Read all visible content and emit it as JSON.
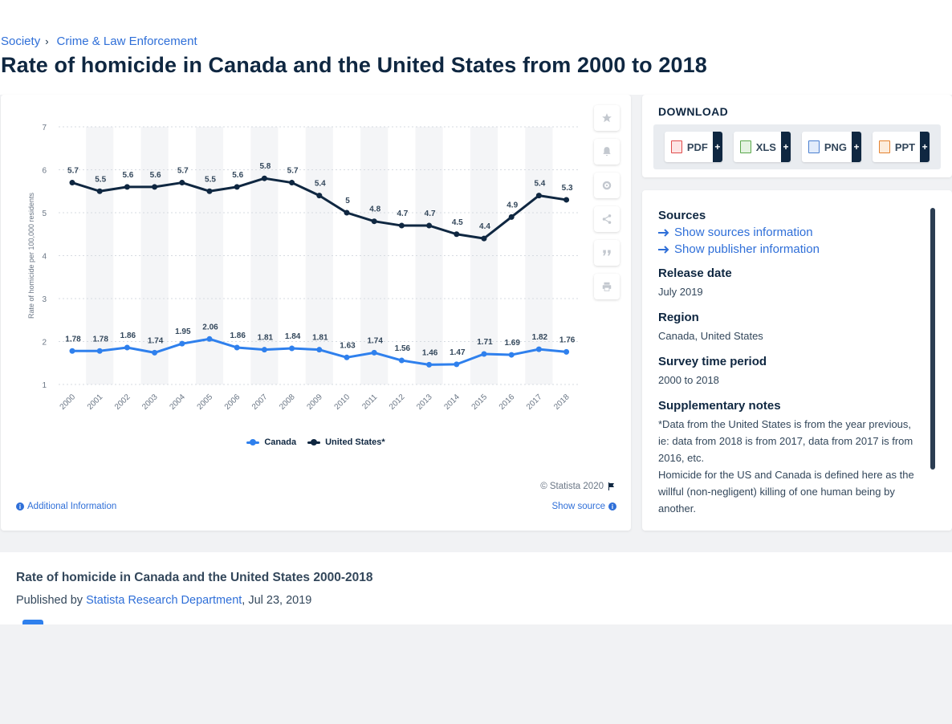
{
  "breadcrumb": {
    "items": [
      "Society",
      "Crime & Law Enforcement"
    ],
    "sep": "›"
  },
  "page_title": "Rate of homicide in Canada and the United States from 2000 to 2018",
  "colors": {
    "canada": "#2f80ed",
    "us": "#0f2741",
    "band": "#f4f5f7",
    "grid": "#d6dbe1",
    "link": "#2f6fd8"
  },
  "chart_data": {
    "type": "line",
    "x": [
      "2000",
      "2001",
      "2002",
      "2003",
      "2004",
      "2005",
      "2006",
      "2007",
      "2008",
      "2009",
      "2010",
      "2011",
      "2012",
      "2013",
      "2014",
      "2015",
      "2016",
      "2017",
      "2018"
    ],
    "series": [
      {
        "name": "Canada",
        "values": [
          1.78,
          1.78,
          1.86,
          1.74,
          1.95,
          2.06,
          1.86,
          1.81,
          1.84,
          1.81,
          1.63,
          1.74,
          1.56,
          1.46,
          1.47,
          1.71,
          1.69,
          1.82,
          1.76
        ],
        "color": "#2f80ed"
      },
      {
        "name": "United States*",
        "values": [
          5.7,
          5.5,
          5.6,
          5.6,
          5.7,
          5.5,
          5.6,
          5.8,
          5.7,
          5.4,
          5,
          4.8,
          4.7,
          4.7,
          4.5,
          4.4,
          4.9,
          5.4,
          5.3
        ],
        "color": "#0f2741"
      }
    ],
    "ylabel": "Rate of homicide per 100,000 residents",
    "yticks": [
      1,
      2,
      3,
      4,
      5,
      6,
      7
    ],
    "ylim": [
      1,
      7
    ],
    "grid": "dotted horizontal",
    "legend": "bottom-center"
  },
  "tools": {
    "icons": [
      "star-icon",
      "bell-icon",
      "gear-icon",
      "share-icon",
      "quote-icon",
      "print-icon"
    ]
  },
  "chart_footer": {
    "copyright": "© Statista 2020",
    "additional_info": "Additional Information",
    "show_source": "Show source"
  },
  "download": {
    "title": "DOWNLOAD",
    "items": [
      {
        "label": "PDF",
        "color": "#e04b4b"
      },
      {
        "label": "XLS",
        "color": "#5aa84b"
      },
      {
        "label": "PNG",
        "color": "#4a7fd0"
      },
      {
        "label": "PPT",
        "color": "#e5822f"
      }
    ],
    "plus": "+"
  },
  "meta": {
    "sources_title": "Sources",
    "show_sources": "Show sources information",
    "show_publisher": "Show publisher information",
    "release_title": "Release date",
    "release_value": "July 2019",
    "region_title": "Region",
    "region_value": "Canada, United States",
    "period_title": "Survey time period",
    "period_value": "2000 to 2018",
    "notes_title": "Supplementary notes",
    "notes_1": "*Data from the United States is from the year previous, ie: data from 2018 is from 2017, data from 2017 is from 2016, etc.",
    "notes_2": "Homicide for the US and Canada is defined here as the willful (non-negligent) killing of one human being by another."
  },
  "bottom": {
    "title": "Rate of homicide in Canada and the United States 2000-2018",
    "published_by": "Published by",
    "publisher": "Statista Research Department",
    "date": ", Jul 23, 2019"
  }
}
